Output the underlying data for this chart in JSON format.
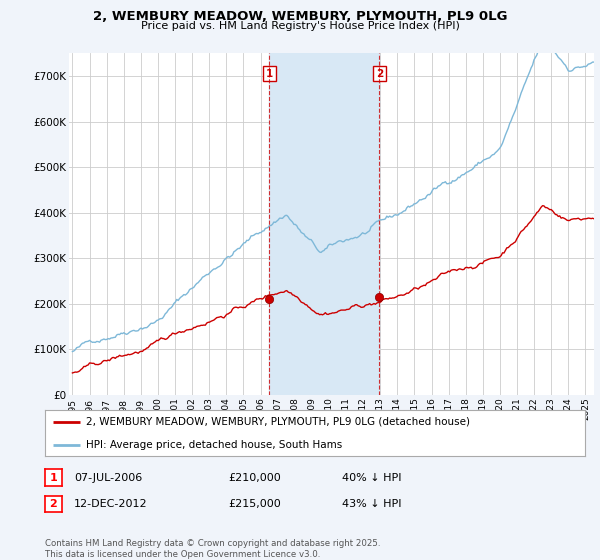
{
  "title": "2, WEMBURY MEADOW, WEMBURY, PLYMOUTH, PL9 0LG",
  "subtitle": "Price paid vs. HM Land Registry's House Price Index (HPI)",
  "legend_line1": "2, WEMBURY MEADOW, WEMBURY, PLYMOUTH, PL9 0LG (detached house)",
  "legend_line2": "HPI: Average price, detached house, South Hams",
  "footer": "Contains HM Land Registry data © Crown copyright and database right 2025.\nThis data is licensed under the Open Government Licence v3.0.",
  "annotation1_label": "1",
  "annotation1_date": "07-JUL-2006",
  "annotation1_price": "£210,000",
  "annotation1_hpi": "40% ↓ HPI",
  "annotation2_label": "2",
  "annotation2_date": "12-DEC-2012",
  "annotation2_price": "£215,000",
  "annotation2_hpi": "43% ↓ HPI",
  "sale1_x": 2006.52,
  "sale1_y": 210000,
  "sale2_x": 2012.95,
  "sale2_y": 215000,
  "hpi_color": "#7eb8d8",
  "property_color": "#cc0000",
  "background_color": "#f0f4fa",
  "plot_background": "#ffffff",
  "shade_color": "#d8e8f5",
  "grid_color": "#cccccc",
  "ylim": [
    0,
    750000
  ],
  "xlim_start": 1994.8,
  "xlim_end": 2025.5,
  "yticks": [
    0,
    100000,
    200000,
    300000,
    400000,
    500000,
    600000,
    700000
  ],
  "ytick_labels": [
    "£0",
    "£100K",
    "£200K",
    "£300K",
    "£400K",
    "£500K",
    "£600K",
    "£700K"
  ],
  "xticks": [
    1995,
    1996,
    1997,
    1998,
    1999,
    2000,
    2001,
    2002,
    2003,
    2004,
    2005,
    2006,
    2007,
    2008,
    2009,
    2010,
    2011,
    2012,
    2013,
    2014,
    2015,
    2016,
    2017,
    2018,
    2019,
    2020,
    2021,
    2022,
    2023,
    2024,
    2025
  ]
}
